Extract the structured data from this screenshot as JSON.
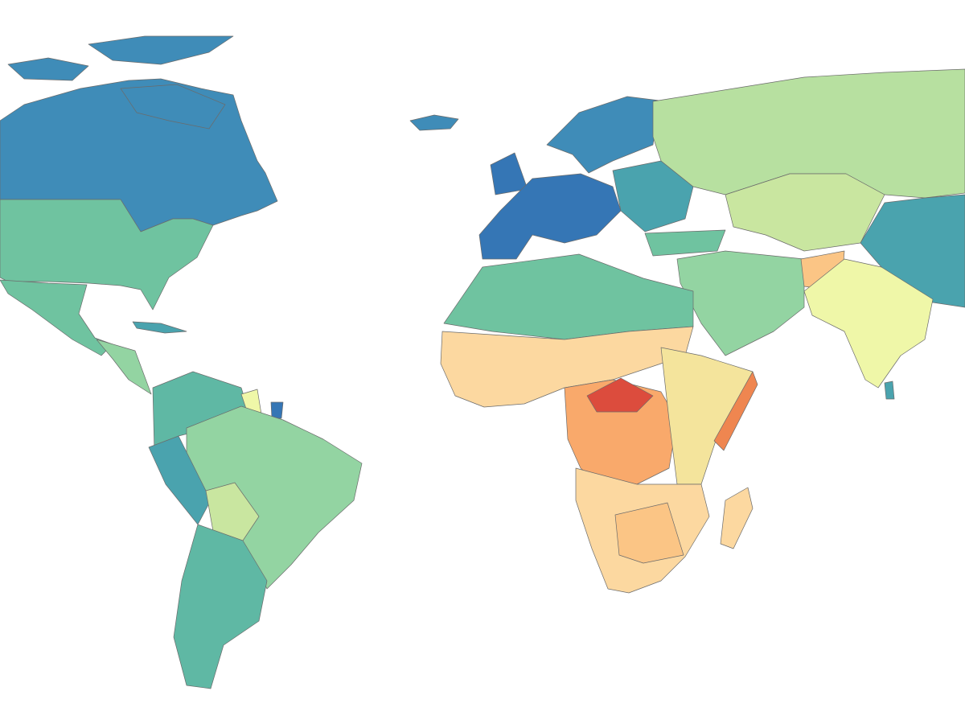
{
  "map": {
    "type": "choropleth",
    "colors": [
      "#3576b5",
      "#3f8cb8",
      "#4aa3ae",
      "#5fb8a4",
      "#6fc3a0",
      "#93d4a2",
      "#b7e0a0",
      "#c9e6a0",
      "#eff7a8",
      "#f4e49c",
      "#fcd8a0",
      "#fbc585",
      "#f9a96b",
      "#ef8650",
      "#dc4c3d"
    ],
    "border_color": "#6b6b6b"
  }
}
